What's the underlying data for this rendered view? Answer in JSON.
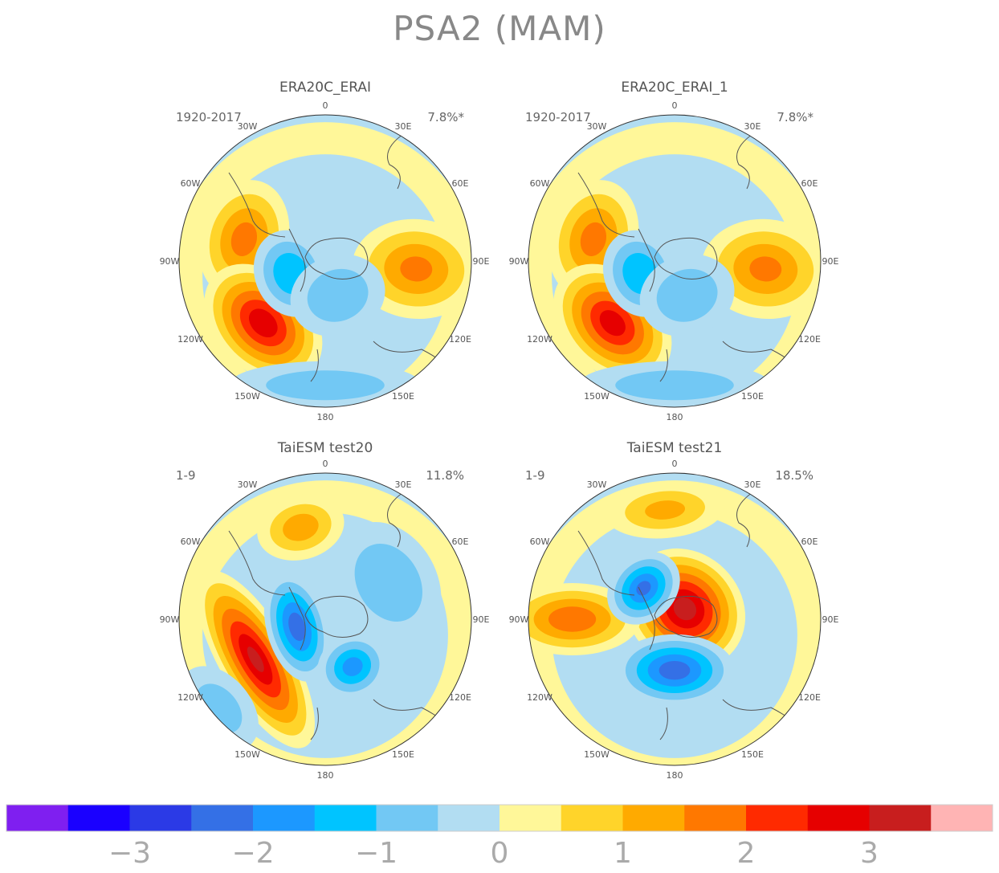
{
  "title": "PSA2 (MAM)",
  "panels": [
    {
      "title": "ERA20C_ERAI",
      "period": "1920-2017",
      "variance": "7.8%*",
      "centers": [
        {
          "lon": -75,
          "colat": 23,
          "rx": 75,
          "ry": 55,
          "amp": 1.6
        },
        {
          "lon": 95,
          "colat": 25,
          "rx": 62,
          "ry": 80,
          "amp": 1.5
        },
        {
          "lon": -135,
          "colat": 24,
          "rx": 85,
          "ry": 60,
          "amp": 2.8
        },
        {
          "lon": -110,
          "colat": 10,
          "rx": 55,
          "ry": 45,
          "amp": -1.4
        },
        {
          "lon": 160,
          "colat": 10,
          "rx": 60,
          "ry": 50,
          "amp": -0.9
        },
        {
          "lon": -180,
          "colat": 34,
          "rx": 120,
          "ry": 30,
          "amp": -0.8
        }
      ]
    },
    {
      "title": "ERA20C_ERAI_1",
      "period": "1920-2017",
      "variance": "7.8%*",
      "centers": [
        {
          "lon": -75,
          "colat": 23,
          "rx": 75,
          "ry": 55,
          "amp": 1.6
        },
        {
          "lon": 95,
          "colat": 25,
          "rx": 62,
          "ry": 80,
          "amp": 1.5
        },
        {
          "lon": -135,
          "colat": 24,
          "rx": 85,
          "ry": 60,
          "amp": 2.7
        },
        {
          "lon": -110,
          "colat": 10,
          "rx": 55,
          "ry": 45,
          "amp": -1.4
        },
        {
          "lon": 160,
          "colat": 10,
          "rx": 60,
          "ry": 50,
          "amp": -0.9
        },
        {
          "lon": -180,
          "colat": 34,
          "rx": 120,
          "ry": 30,
          "amp": -0.8
        }
      ]
    },
    {
      "title": "TaiESM test20",
      "period": "1-9",
      "variance": "11.8%",
      "centers": [
        {
          "lon": -120,
          "colat": 22,
          "rx": 125,
          "ry": 45,
          "amp": 3.0
        },
        {
          "lon": -105,
          "colat": 8,
          "rx": 70,
          "ry": 38,
          "amp": -2.2
        },
        {
          "lon": 150,
          "colat": 15,
          "rx": 45,
          "ry": 40,
          "amp": -1.6
        },
        {
          "lon": -15,
          "colat": 26,
          "rx": 55,
          "ry": 40,
          "amp": 1.2
        },
        {
          "lon": 60,
          "colat": 20,
          "rx": 80,
          "ry": 60,
          "amp": -0.9
        },
        {
          "lon": -130,
          "colat": 38,
          "rx": 60,
          "ry": 40,
          "amp": -0.7
        }
      ]
    },
    {
      "title": "TaiESM test21",
      "period": "1-9",
      "variance": "18.5%",
      "centers": [
        {
          "lon": 45,
          "colat": 4,
          "rx": 80,
          "ry": 70,
          "amp": 3.2
        },
        {
          "lon": -90,
          "colat": 28,
          "rx": 45,
          "ry": 85,
          "amp": 1.8
        },
        {
          "lon": -45,
          "colat": 12,
          "rx": 50,
          "ry": 40,
          "amp": -2.0
        },
        {
          "lon": 180,
          "colat": 14,
          "rx": 75,
          "ry": 45,
          "amp": -2.2
        },
        {
          "lon": -5,
          "colat": 30,
          "rx": 75,
          "ry": 35,
          "amp": 1.0
        }
      ]
    }
  ],
  "lon_labels": [
    "0",
    "30E",
    "60E",
    "90E",
    "120E",
    "150E",
    "180",
    "150W",
    "120W",
    "90W",
    "60W",
    "30W"
  ],
  "colorbar": {
    "colors": [
      "#7f1ff0",
      "#1a00ff",
      "#2b3ae6",
      "#3470e6",
      "#1c98ff",
      "#00c4ff",
      "#72c8f4",
      "#b2ddf2",
      "#fff799",
      "#ffd42a",
      "#ffaa00",
      "#ff7800",
      "#ff2a00",
      "#e60000",
      "#c81e1e",
      "#ffb4b4"
    ],
    "levels": [
      -3.5,
      -3,
      -2.5,
      -2,
      -1.5,
      -1,
      -0.5,
      0,
      0.5,
      1,
      1.5,
      2,
      2.5,
      3,
      3.5
    ],
    "labels": [
      "−3",
      "−2",
      "−1",
      "0",
      "1",
      "2",
      "3"
    ]
  }
}
